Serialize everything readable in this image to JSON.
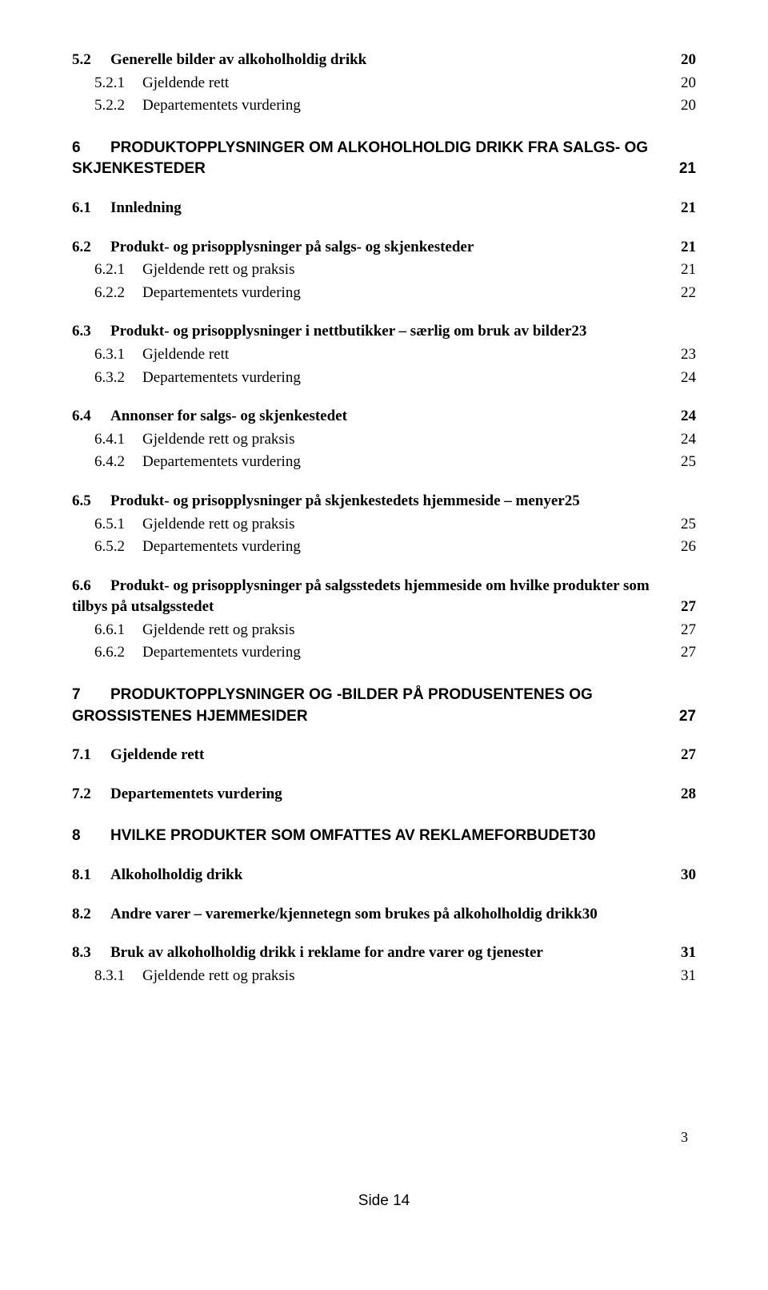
{
  "toc": [
    {
      "cls": "lvl-bold",
      "num": "5.2",
      "numw": "num-w1",
      "text": "Generelle bilder av alkoholholdig drikk",
      "page": "20",
      "inlinePage": false
    },
    {
      "cls": "lvl-sub tight",
      "num": "5.2.1",
      "numw": "num-w2",
      "text": "Gjeldende rett",
      "page": "20",
      "inlinePage": false
    },
    {
      "cls": "lvl-sub",
      "num": "5.2.2",
      "numw": "num-w2",
      "text": "Departementets vurdering",
      "page": "20",
      "inlinePage": false
    },
    {
      "cls": "lvl-arial-wrapped",
      "num": "6",
      "numw": "num-w1",
      "text": "PRODUKTOPPLYSNINGER OM ALKOHOLHOLDIG DRIKK FRA SALGS- OG SKJENKESTEDER",
      "page": "21",
      "inlinePage": false,
      "wrap": true
    },
    {
      "cls": "lvl-bold",
      "num": "6.1",
      "numw": "num-w1",
      "text": "Innledning",
      "page": "21",
      "inlinePage": false
    },
    {
      "cls": "lvl-bold",
      "num": "6.2",
      "numw": "num-w1",
      "text": "Produkt- og prisopplysninger på salgs- og skjenkesteder",
      "page": "21",
      "inlinePage": false
    },
    {
      "cls": "lvl-sub tight",
      "num": "6.2.1",
      "numw": "num-w2",
      "text": "Gjeldende rett og praksis",
      "page": "21",
      "inlinePage": false
    },
    {
      "cls": "lvl-sub",
      "num": "6.2.2",
      "numw": "num-w2",
      "text": "Departementets vurdering",
      "page": "22",
      "inlinePage": false
    },
    {
      "cls": "lvl-bold",
      "num": "6.3",
      "numw": "num-w1",
      "text": "Produkt- og prisopplysninger i nettbutikker – særlig om bruk av bilder",
      "page": "23",
      "inlinePage": true
    },
    {
      "cls": "lvl-sub tight",
      "num": "6.3.1",
      "numw": "num-w2",
      "text": "Gjeldende rett",
      "page": "23",
      "inlinePage": false
    },
    {
      "cls": "lvl-sub",
      "num": "6.3.2",
      "numw": "num-w2",
      "text": "Departementets vurdering",
      "page": "24",
      "inlinePage": false
    },
    {
      "cls": "lvl-bold",
      "num": "6.4",
      "numw": "num-w1",
      "text": "Annonser for salgs- og skjenkestedet",
      "page": "24",
      "inlinePage": false
    },
    {
      "cls": "lvl-sub tight",
      "num": "6.4.1",
      "numw": "num-w2",
      "text": "Gjeldende rett og praksis",
      "page": "24",
      "inlinePage": false
    },
    {
      "cls": "lvl-sub",
      "num": "6.4.2",
      "numw": "num-w2",
      "text": "Departementets vurdering",
      "page": "25",
      "inlinePage": false
    },
    {
      "cls": "lvl-bold",
      "num": "6.5",
      "numw": "num-w1",
      "text": "Produkt- og prisopplysninger på skjenkestedets hjemmeside – menyer",
      "page": "25",
      "inlinePage": true
    },
    {
      "cls": "lvl-sub tight",
      "num": "6.5.1",
      "numw": "num-w2",
      "text": "Gjeldende rett og praksis",
      "page": "25",
      "inlinePage": false
    },
    {
      "cls": "lvl-sub",
      "num": "6.5.2",
      "numw": "num-w2",
      "text": "Departementets vurdering",
      "page": "26",
      "inlinePage": false
    },
    {
      "cls": "lvl-bold",
      "num": "6.6",
      "numw": "num-w1",
      "text": "Produkt- og prisopplysninger på salgsstedets hjemmeside om hvilke produkter som tilbys på utsalgsstedet",
      "page": "27",
      "inlinePage": false,
      "wrap": true
    },
    {
      "cls": "lvl-sub tight",
      "num": "6.6.1",
      "numw": "num-w2",
      "text": "Gjeldende rett og praksis",
      "page": "27",
      "inlinePage": false
    },
    {
      "cls": "lvl-sub",
      "num": "6.6.2",
      "numw": "num-w2",
      "text": "Departementets vurdering",
      "page": "27",
      "inlinePage": false
    },
    {
      "cls": "lvl-arial-wrapped",
      "num": "7",
      "numw": "num-w1",
      "text": "PRODUKTOPPLYSNINGER OG -BILDER PÅ PRODUSENTENES OG GROSSISTENES HJEMMESIDER",
      "page": "27",
      "inlinePage": false,
      "wrap": true
    },
    {
      "cls": "lvl-bold",
      "num": "7.1",
      "numw": "num-w1",
      "text": "Gjeldende rett",
      "page": "27",
      "inlinePage": false
    },
    {
      "cls": "lvl-bold",
      "num": "7.2",
      "numw": "num-w1",
      "text": "Departementets vurdering",
      "page": "28",
      "inlinePage": false
    },
    {
      "cls": "lvl-arial",
      "num": "8",
      "numw": "num-w1",
      "text": "HVILKE PRODUKTER SOM OMFATTES AV REKLAMEFORBUDET",
      "page": "30",
      "inlinePage": true
    },
    {
      "cls": "lvl-bold",
      "num": "8.1",
      "numw": "num-w1",
      "text": "Alkoholholdig drikk",
      "page": "30",
      "inlinePage": false
    },
    {
      "cls": "lvl-bold",
      "num": "8.2",
      "numw": "num-w1",
      "text": "Andre varer – varemerke/kjennetegn som brukes på alkoholholdig drikk",
      "page": "30",
      "inlinePage": true
    },
    {
      "cls": "lvl-bold",
      "num": "8.3",
      "numw": "num-w1",
      "text": "Bruk av alkoholholdig drikk i reklame for andre varer og tjenester",
      "page": "31",
      "inlinePage": false
    },
    {
      "cls": "lvl-sub tight",
      "num": "8.3.1",
      "numw": "num-w2",
      "text": "Gjeldende rett og praksis",
      "page": "31",
      "inlinePage": false
    }
  ],
  "cornerPage": "3",
  "footerPage": "Side 14"
}
